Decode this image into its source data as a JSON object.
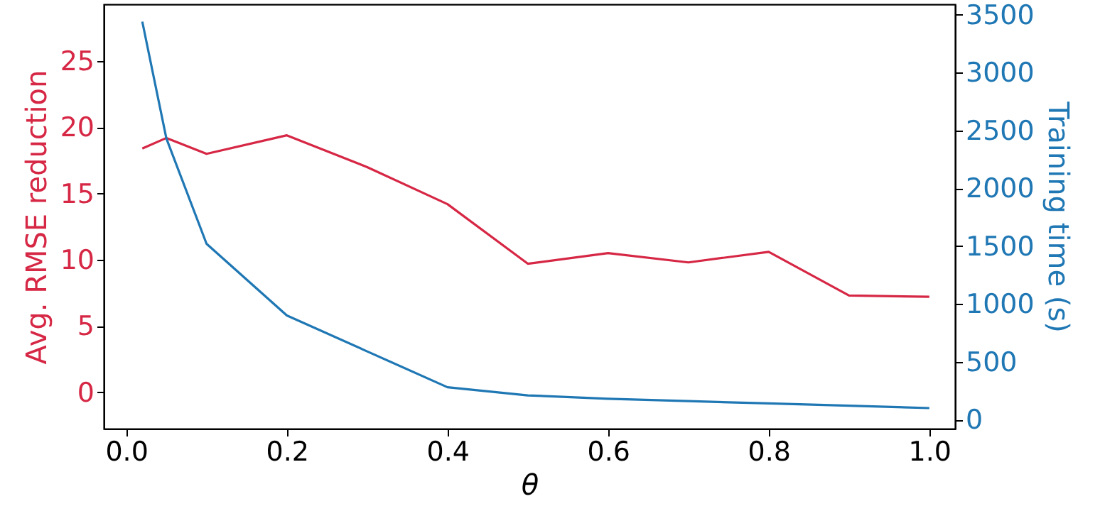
{
  "chart_data": {
    "type": "line",
    "xlabel": "θ",
    "ylabel": "Avg. RMSE reduction",
    "y2label": "Training time (s)",
    "x": [
      0.02,
      0.05,
      0.1,
      0.2,
      0.3,
      0.4,
      0.5,
      0.6,
      0.7,
      0.8,
      0.9,
      1.0
    ],
    "series": [
      {
        "color": "#d62745",
        "values": [
          18.4,
          19.2,
          18.0,
          19.4,
          17.0,
          14.2,
          9.7,
          10.5,
          9.8,
          10.6,
          7.3,
          7.2
        ]
      },
      {
        "color": "#1f77b4",
        "axis": "y2",
        "values": [
          3440,
          2430,
          1520,
          900,
          590,
          280,
          210,
          180,
          160,
          140,
          120,
          100
        ]
      }
    ],
    "xlim": [
      -0.028,
      1.032
    ],
    "ylim": [
      -2.76,
      29.3
    ],
    "y2lim": [
      -78,
      3590
    ],
    "xticks": [
      {
        "value": 0,
        "label": "0.0"
      },
      {
        "value": 0.2,
        "label": "0.2"
      },
      {
        "value": 0.4,
        "label": "0.4"
      },
      {
        "value": 0.6,
        "label": "0.6"
      },
      {
        "value": 0.8,
        "label": "0.8"
      },
      {
        "value": 1,
        "label": "1.0"
      }
    ],
    "yticks": [
      0,
      5,
      10,
      15,
      20,
      25
    ],
    "y2ticks": [
      0,
      500,
      1000,
      1500,
      2000,
      2500,
      3000,
      3500
    ],
    "grid": false,
    "marker": "none",
    "line_style": "solid"
  }
}
